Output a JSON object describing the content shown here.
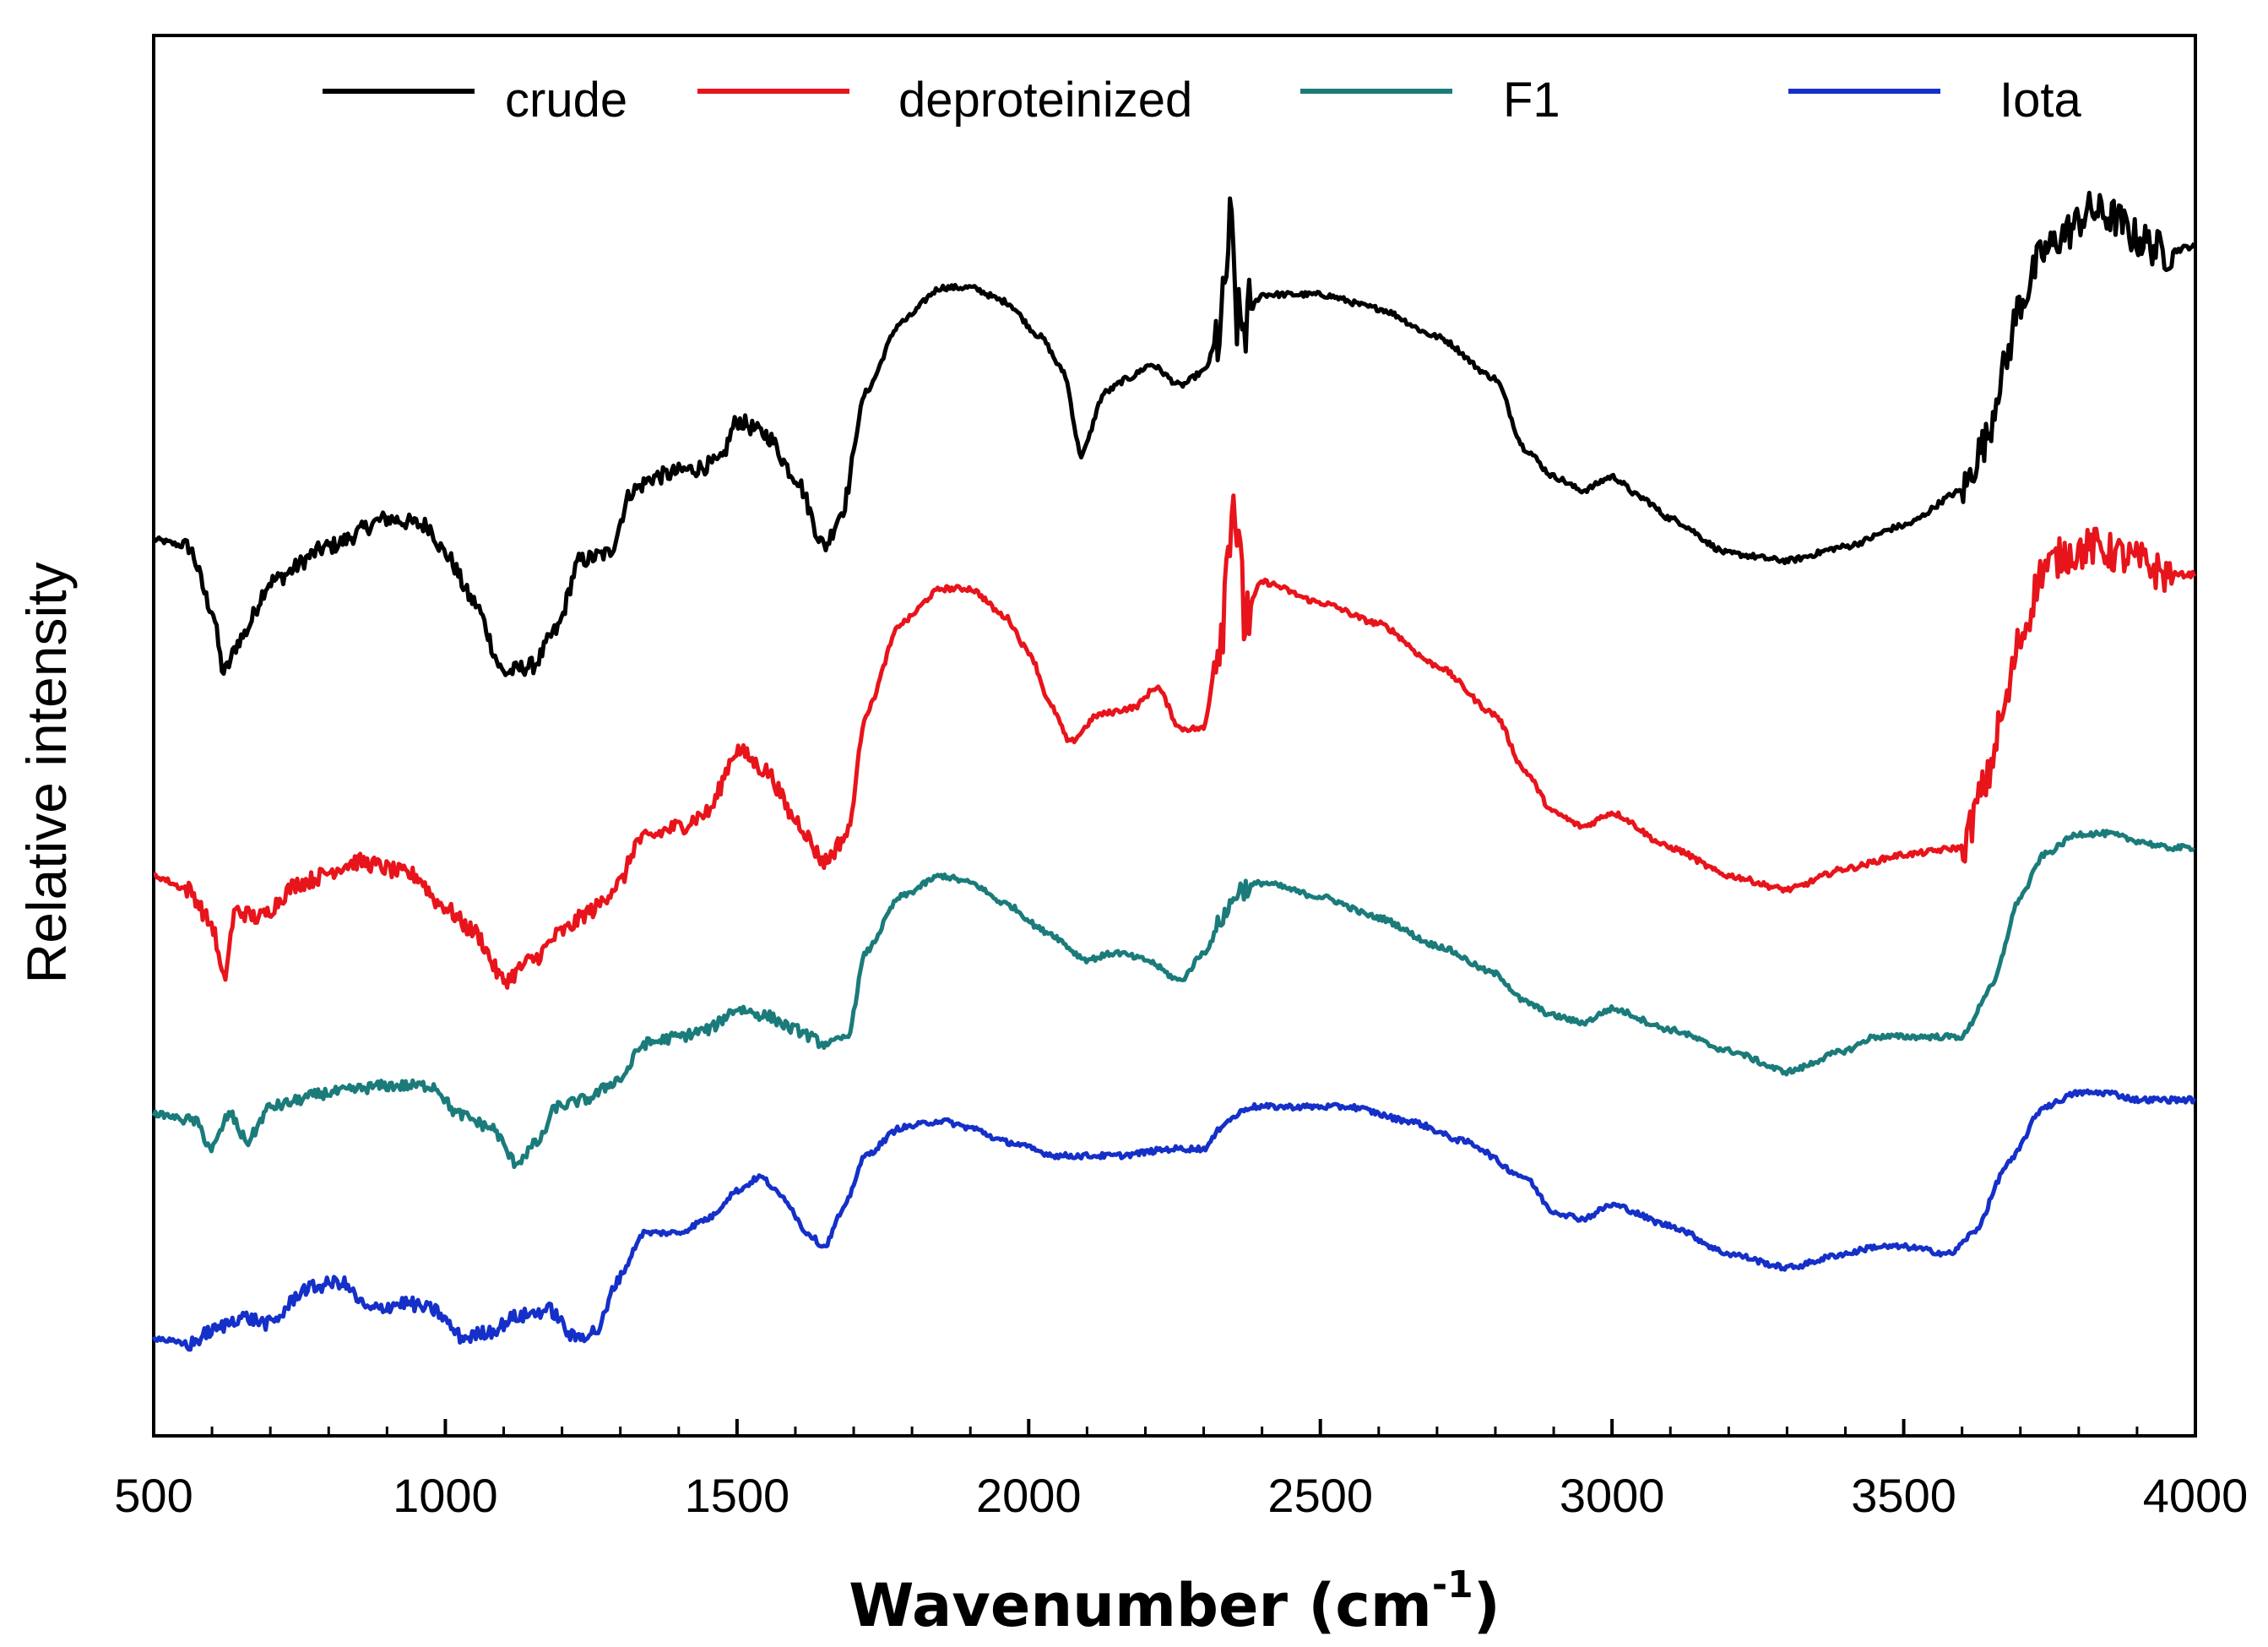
{
  "chart_data": {
    "type": "line",
    "title": "",
    "xlabel": "Wavenumber (cm",
    "xlabel_superscript": "-1",
    "xlabel_close": ")",
    "ylabel": "Relative intensity",
    "xlim": [
      500,
      4000
    ],
    "ylim": [
      0,
      10
    ],
    "x_ticks": [
      500,
      1000,
      1500,
      2000,
      2500,
      3000,
      3500,
      4000
    ],
    "x_tick_labels": [
      "500",
      "1000",
      "1500",
      "2000",
      "2500",
      "3000",
      "3500",
      "4000"
    ],
    "y_ticks_shown": false,
    "legend_position": "top",
    "series": [
      {
        "name": "crude",
        "color": "#000000",
        "points": [
          [
            500,
            6.4
          ],
          [
            560,
            6.35
          ],
          [
            600,
            5.9
          ],
          [
            620,
            5.45
          ],
          [
            650,
            5.7
          ],
          [
            700,
            6.1
          ],
          [
            800,
            6.35
          ],
          [
            900,
            6.55
          ],
          [
            970,
            6.5
          ],
          [
            1000,
            6.3
          ],
          [
            1050,
            5.95
          ],
          [
            1100,
            5.45
          ],
          [
            1150,
            5.5
          ],
          [
            1190,
            5.75
          ],
          [
            1230,
            6.25
          ],
          [
            1280,
            6.3
          ],
          [
            1320,
            6.75
          ],
          [
            1360,
            6.85
          ],
          [
            1420,
            6.9
          ],
          [
            1470,
            6.95
          ],
          [
            1500,
            7.25
          ],
          [
            1550,
            7.15
          ],
          [
            1600,
            6.85
          ],
          [
            1650,
            6.35
          ],
          [
            1680,
            6.6
          ],
          [
            1720,
            7.45
          ],
          [
            1780,
            7.95
          ],
          [
            1850,
            8.2
          ],
          [
            1900,
            8.2
          ],
          [
            1960,
            8.1
          ],
          [
            2020,
            7.85
          ],
          [
            2060,
            7.6
          ],
          [
            2090,
            7.0
          ],
          [
            2130,
            7.45
          ],
          [
            2170,
            7.55
          ],
          [
            2210,
            7.65
          ],
          [
            2260,
            7.5
          ],
          [
            2300,
            7.6
          ],
          [
            2330,
            7.9
          ],
          [
            2345,
            8.6
          ],
          [
            2360,
            7.9
          ],
          [
            2400,
            8.15
          ],
          [
            2500,
            8.15
          ],
          [
            2600,
            8.05
          ],
          [
            2700,
            7.85
          ],
          [
            2800,
            7.55
          ],
          [
            2850,
            7.05
          ],
          [
            2900,
            6.85
          ],
          [
            2950,
            6.75
          ],
          [
            3000,
            6.85
          ],
          [
            3050,
            6.7
          ],
          [
            3100,
            6.55
          ],
          [
            3200,
            6.3
          ],
          [
            3300,
            6.25
          ],
          [
            3400,
            6.35
          ],
          [
            3500,
            6.5
          ],
          [
            3600,
            6.75
          ],
          [
            3640,
            7.1
          ],
          [
            3670,
            7.6
          ],
          [
            3700,
            8.1
          ],
          [
            3740,
            8.45
          ],
          [
            3780,
            8.6
          ],
          [
            3820,
            8.75
          ],
          [
            3860,
            8.7
          ],
          [
            3900,
            8.55
          ],
          [
            3950,
            8.45
          ],
          [
            4000,
            8.5
          ]
        ]
      },
      {
        "name": "deproteinized",
        "color": "#e8141b",
        "points": [
          [
            500,
            4.0
          ],
          [
            560,
            3.9
          ],
          [
            600,
            3.65
          ],
          [
            620,
            3.25
          ],
          [
            640,
            3.75
          ],
          [
            680,
            3.7
          ],
          [
            750,
            3.95
          ],
          [
            850,
            4.1
          ],
          [
            950,
            4.0
          ],
          [
            990,
            3.8
          ],
          [
            1050,
            3.6
          ],
          [
            1100,
            3.25
          ],
          [
            1150,
            3.4
          ],
          [
            1200,
            3.6
          ],
          [
            1250,
            3.75
          ],
          [
            1300,
            3.95
          ],
          [
            1330,
            4.25
          ],
          [
            1400,
            4.35
          ],
          [
            1450,
            4.45
          ],
          [
            1500,
            4.9
          ],
          [
            1550,
            4.75
          ],
          [
            1600,
            4.4
          ],
          [
            1650,
            4.1
          ],
          [
            1690,
            4.3
          ],
          [
            1720,
            5.15
          ],
          [
            1780,
            5.8
          ],
          [
            1850,
            6.05
          ],
          [
            1900,
            6.05
          ],
          [
            1960,
            5.85
          ],
          [
            2000,
            5.6
          ],
          [
            2040,
            5.2
          ],
          [
            2070,
            4.95
          ],
          [
            2120,
            5.15
          ],
          [
            2180,
            5.2
          ],
          [
            2220,
            5.35
          ],
          [
            2260,
            5.05
          ],
          [
            2300,
            5.05
          ],
          [
            2330,
            5.8
          ],
          [
            2350,
            6.75
          ],
          [
            2370,
            5.85
          ],
          [
            2400,
            6.1
          ],
          [
            2500,
            5.95
          ],
          [
            2600,
            5.8
          ],
          [
            2700,
            5.5
          ],
          [
            2800,
            5.15
          ],
          [
            2850,
            4.75
          ],
          [
            2900,
            4.45
          ],
          [
            2950,
            4.35
          ],
          [
            3000,
            4.45
          ],
          [
            3100,
            4.2
          ],
          [
            3200,
            4.0
          ],
          [
            3300,
            3.9
          ],
          [
            3400,
            4.05
          ],
          [
            3500,
            4.15
          ],
          [
            3600,
            4.2
          ],
          [
            3640,
            4.65
          ],
          [
            3670,
            5.15
          ],
          [
            3700,
            5.7
          ],
          [
            3740,
            6.2
          ],
          [
            3780,
            6.3
          ],
          [
            3830,
            6.35
          ],
          [
            3860,
            6.3
          ],
          [
            3900,
            6.25
          ],
          [
            3950,
            6.15
          ],
          [
            4000,
            6.15
          ]
        ]
      },
      {
        "name": "F1",
        "color": "#1b7b7b",
        "points": [
          [
            500,
            2.3
          ],
          [
            570,
            2.25
          ],
          [
            600,
            2.05
          ],
          [
            630,
            2.3
          ],
          [
            660,
            2.1
          ],
          [
            700,
            2.35
          ],
          [
            800,
            2.45
          ],
          [
            900,
            2.5
          ],
          [
            980,
            2.5
          ],
          [
            1020,
            2.3
          ],
          [
            1080,
            2.2
          ],
          [
            1120,
            1.95
          ],
          [
            1160,
            2.1
          ],
          [
            1190,
            2.35
          ],
          [
            1240,
            2.4
          ],
          [
            1300,
            2.55
          ],
          [
            1340,
            2.8
          ],
          [
            1400,
            2.85
          ],
          [
            1450,
            2.9
          ],
          [
            1500,
            3.05
          ],
          [
            1550,
            3.0
          ],
          [
            1600,
            2.9
          ],
          [
            1650,
            2.8
          ],
          [
            1690,
            2.85
          ],
          [
            1720,
            3.45
          ],
          [
            1780,
            3.85
          ],
          [
            1850,
            4.0
          ],
          [
            1900,
            3.95
          ],
          [
            1960,
            3.8
          ],
          [
            2030,
            3.6
          ],
          [
            2100,
            3.4
          ],
          [
            2150,
            3.45
          ],
          [
            2200,
            3.4
          ],
          [
            2260,
            3.25
          ],
          [
            2300,
            3.45
          ],
          [
            2340,
            3.75
          ],
          [
            2360,
            3.9
          ],
          [
            2400,
            3.95
          ],
          [
            2500,
            3.85
          ],
          [
            2600,
            3.7
          ],
          [
            2700,
            3.5
          ],
          [
            2800,
            3.3
          ],
          [
            2850,
            3.1
          ],
          [
            2900,
            3.0
          ],
          [
            2950,
            2.95
          ],
          [
            3000,
            3.05
          ],
          [
            3100,
            2.9
          ],
          [
            3200,
            2.75
          ],
          [
            3300,
            2.6
          ],
          [
            3400,
            2.75
          ],
          [
            3450,
            2.85
          ],
          [
            3500,
            2.85
          ],
          [
            3600,
            2.85
          ],
          [
            3650,
            3.2
          ],
          [
            3700,
            3.85
          ],
          [
            3740,
            4.15
          ],
          [
            3800,
            4.3
          ],
          [
            3850,
            4.3
          ],
          [
            3900,
            4.25
          ],
          [
            3950,
            4.2
          ],
          [
            4000,
            4.2
          ]
        ]
      },
      {
        "name": "Iota",
        "color": "#1530c8",
        "points": [
          [
            500,
            0.7
          ],
          [
            560,
            0.65
          ],
          [
            600,
            0.75
          ],
          [
            650,
            0.85
          ],
          [
            700,
            0.8
          ],
          [
            760,
            1.05
          ],
          [
            820,
            1.1
          ],
          [
            870,
            0.9
          ],
          [
            930,
            0.95
          ],
          [
            980,
            0.9
          ],
          [
            1030,
            0.7
          ],
          [
            1080,
            0.75
          ],
          [
            1120,
            0.85
          ],
          [
            1180,
            0.9
          ],
          [
            1220,
            0.7
          ],
          [
            1260,
            0.75
          ],
          [
            1300,
            1.15
          ],
          [
            1340,
            1.45
          ],
          [
            1400,
            1.45
          ],
          [
            1450,
            1.55
          ],
          [
            1500,
            1.75
          ],
          [
            1540,
            1.85
          ],
          [
            1580,
            1.7
          ],
          [
            1620,
            1.45
          ],
          [
            1650,
            1.35
          ],
          [
            1680,
            1.6
          ],
          [
            1720,
            2.0
          ],
          [
            1780,
            2.2
          ],
          [
            1850,
            2.25
          ],
          [
            1900,
            2.2
          ],
          [
            1960,
            2.1
          ],
          [
            2050,
            2.0
          ],
          [
            2150,
            2.0
          ],
          [
            2250,
            2.05
          ],
          [
            2300,
            2.05
          ],
          [
            2340,
            2.25
          ],
          [
            2380,
            2.35
          ],
          [
            2450,
            2.35
          ],
          [
            2550,
            2.35
          ],
          [
            2650,
            2.25
          ],
          [
            2750,
            2.1
          ],
          [
            2850,
            1.85
          ],
          [
            2900,
            1.6
          ],
          [
            2950,
            1.55
          ],
          [
            3000,
            1.65
          ],
          [
            3100,
            1.5
          ],
          [
            3200,
            1.3
          ],
          [
            3300,
            1.2
          ],
          [
            3400,
            1.3
          ],
          [
            3450,
            1.35
          ],
          [
            3500,
            1.35
          ],
          [
            3580,
            1.3
          ],
          [
            3620,
            1.45
          ],
          [
            3680,
            1.95
          ],
          [
            3740,
            2.35
          ],
          [
            3800,
            2.45
          ],
          [
            3850,
            2.45
          ],
          [
            3900,
            2.4
          ],
          [
            3950,
            2.4
          ],
          [
            4000,
            2.4
          ]
        ]
      }
    ]
  }
}
